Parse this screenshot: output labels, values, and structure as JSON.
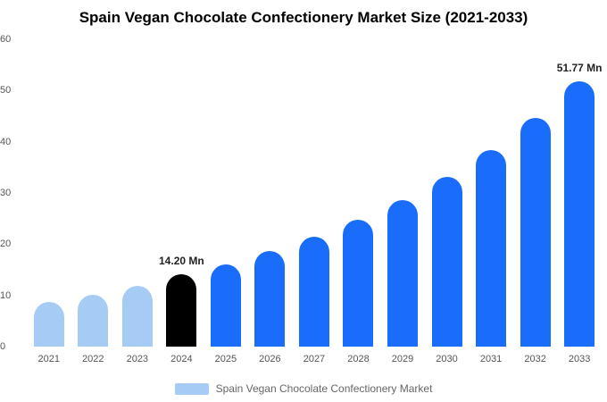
{
  "title": "Spain Vegan Chocolate Confectionery Market Size (2021-2033)",
  "colors": {
    "light": "#a6cbf4",
    "primary": "#1a6dfa",
    "highlight": "#000000"
  },
  "legend": {
    "label": "Spain Vegan Chocolate Confectionery Market",
    "swatch_color": "#a6cbf4"
  },
  "chart_data": {
    "type": "bar",
    "title": "Spain Vegan Chocolate Confectionery Market Size (2021-2033)",
    "xlabel": "",
    "ylabel": "",
    "unit": "Mn",
    "categories": [
      "2021",
      "2022",
      "2023",
      "2024",
      "2025",
      "2026",
      "2027",
      "2028",
      "2029",
      "2030",
      "2031",
      "2032",
      "2033"
    ],
    "values": [
      8.7,
      10.2,
      11.8,
      14.2,
      16.1,
      18.6,
      21.5,
      24.8,
      28.6,
      33.2,
      38.4,
      44.6,
      51.77
    ],
    "bar_colors": [
      "light",
      "light",
      "light",
      "highlight",
      "primary",
      "primary",
      "primary",
      "primary",
      "primary",
      "primary",
      "primary",
      "primary",
      "primary"
    ],
    "annotations": [
      {
        "index": 3,
        "text": "14.20 Mn"
      },
      {
        "index": 12,
        "text": "51.77 Mn"
      }
    ],
    "ylim": [
      0,
      60
    ],
    "yticks": [
      0,
      10,
      20,
      30,
      40,
      50,
      60
    ],
    "grid": false,
    "legend_position": "bottom"
  }
}
